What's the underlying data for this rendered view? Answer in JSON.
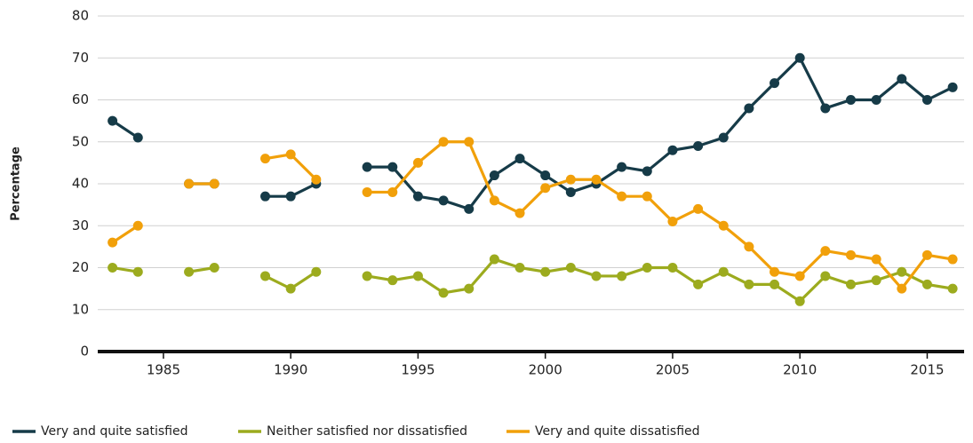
{
  "chart_data": {
    "type": "line",
    "y_label": "Percentage",
    "x": [
      1983,
      1984,
      1985,
      1986,
      1987,
      1988,
      1989,
      1990,
      1991,
      1992,
      1993,
      1994,
      1995,
      1996,
      1997,
      1998,
      1999,
      2000,
      2001,
      2002,
      2003,
      2004,
      2005,
      2006,
      2007,
      2008,
      2009,
      2010,
      2011,
      2012,
      2013,
      2014,
      2015,
      2016
    ],
    "series": [
      {
        "name": "Very and quite satisfied",
        "color": "#163b48",
        "values": [
          55,
          51,
          null,
          40,
          40,
          null,
          37,
          37,
          40,
          null,
          44,
          44,
          37,
          36,
          34,
          42,
          46,
          42,
          38,
          40,
          44,
          43,
          48,
          49,
          51,
          58,
          64,
          70,
          58,
          60,
          60,
          65,
          60,
          63
        ]
      },
      {
        "name": "Neither satisfied nor dissatisfied",
        "color": "#9cab1e",
        "values": [
          20,
          19,
          null,
          19,
          20,
          null,
          18,
          15,
          19,
          null,
          18,
          17,
          18,
          14,
          15,
          22,
          20,
          19,
          20,
          18,
          18,
          20,
          20,
          16,
          19,
          16,
          16,
          12,
          18,
          16,
          17,
          19,
          16,
          15
        ]
      },
      {
        "name": "Very and quite dissatisfied",
        "color": "#f1a00a",
        "values": [
          26,
          30,
          null,
          40,
          40,
          null,
          46,
          47,
          41,
          null,
          38,
          38,
          45,
          50,
          50,
          36,
          33,
          39,
          41,
          41,
          37,
          37,
          31,
          34,
          30,
          25,
          19,
          18,
          24,
          23,
          22,
          15,
          23,
          22
        ]
      }
    ],
    "xlim": [
      1982.42,
      2016.45
    ],
    "xticks": [
      1985,
      1990,
      1995,
      2000,
      2005,
      2010,
      2015
    ],
    "ylim": [
      0,
      80
    ],
    "yticks": [
      0,
      10,
      20,
      30,
      40,
      50,
      60,
      70,
      80
    ],
    "grid": true,
    "legend": "bottom"
  }
}
